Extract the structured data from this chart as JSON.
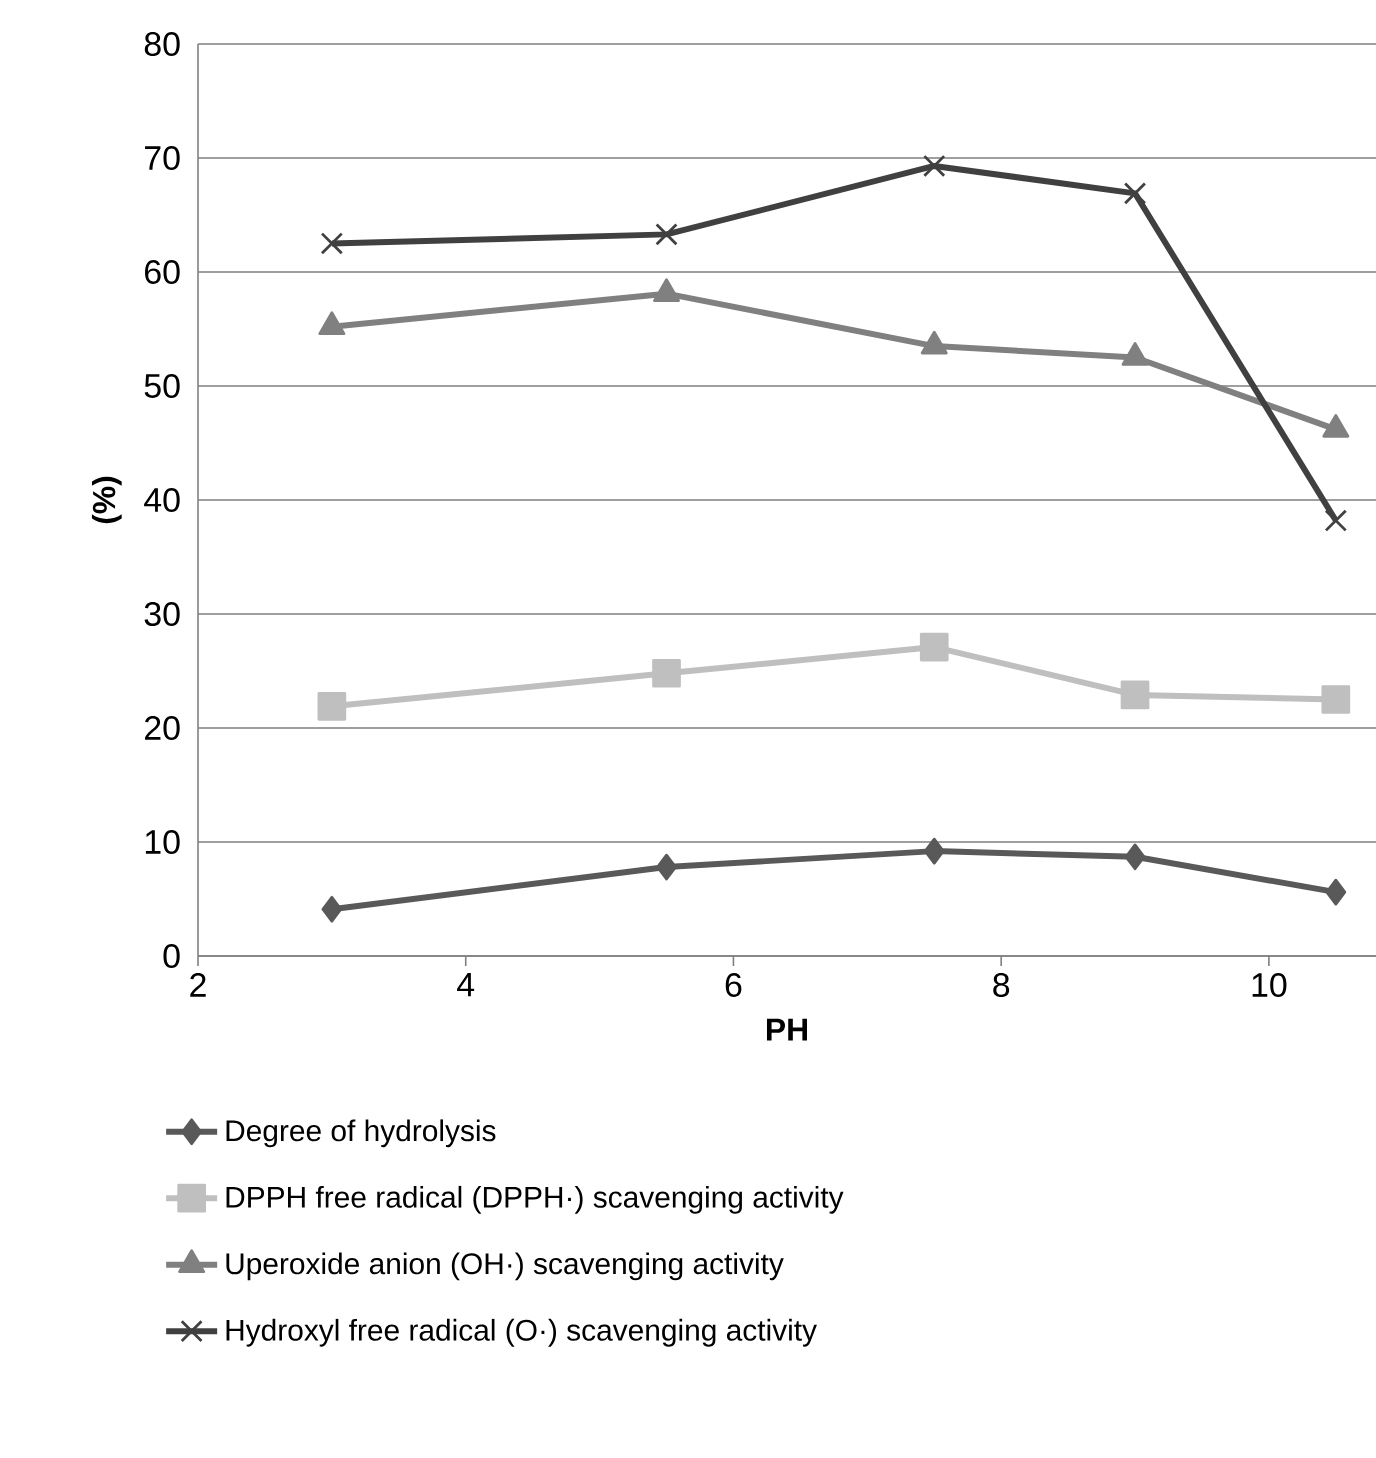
{
  "chart_data": {
    "type": "line",
    "xlabel": "PH",
    "ylabel": "(%)",
    "x": [
      3,
      5.5,
      7.5,
      9,
      10.5
    ],
    "series": [
      {
        "name": "Degree of hydrolysis",
        "color": "#595959",
        "marker": "diamond",
        "values": [
          4.1,
          7.8,
          9.2,
          8.7,
          5.6
        ]
      },
      {
        "name": "DPPH free radical (DPPH·) scavenging activity",
        "color": "#bfbfbf",
        "marker": "square",
        "values": [
          21.9,
          24.8,
          27.1,
          22.9,
          22.5
        ]
      },
      {
        "name": "Uperoxide anion (OH·) scavenging activity",
        "color": "#808080",
        "marker": "triangle",
        "values": [
          55.2,
          58.1,
          53.5,
          52.5,
          46.2
        ]
      },
      {
        "name": "Hydroxyl free radical (O·) scavenging activity",
        "color": "#404040",
        "marker": "cross",
        "values": [
          62.5,
          63.3,
          69.3,
          66.9,
          38.2
        ]
      }
    ],
    "xlim": [
      2,
      10.8
    ],
    "xticks": [
      2,
      4,
      6,
      8,
      10
    ],
    "ylim": [
      0,
      80
    ],
    "yticks": [
      0,
      10,
      20,
      30,
      40,
      50,
      60,
      70,
      80
    ],
    "grid": "y",
    "legend": "bottom",
    "line_style": "solid"
  }
}
